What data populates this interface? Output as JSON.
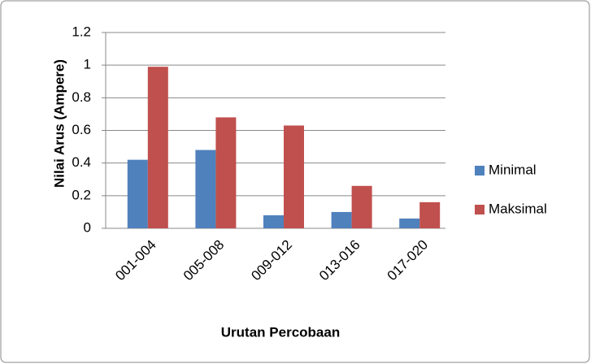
{
  "chart_data": {
    "type": "bar",
    "categories": [
      "001-004",
      "005-008",
      "009-012",
      "013-016",
      "017-020"
    ],
    "series": [
      {
        "name": "Minimal",
        "color": "#4f81bd",
        "values": [
          0.42,
          0.48,
          0.08,
          0.1,
          0.06
        ]
      },
      {
        "name": "Maksimal",
        "color": "#c0504d",
        "values": [
          0.99,
          0.68,
          0.63,
          0.26,
          0.16
        ]
      }
    ],
    "ylim": [
      0,
      1.2
    ],
    "yticks": [
      0,
      0.2,
      0.4,
      0.6,
      0.8,
      1,
      1.2
    ],
    "grid": true,
    "xlabel": "Urutan Percobaan",
    "ylabel": "Nilai Arus (Ampere)",
    "legend": "right"
  }
}
